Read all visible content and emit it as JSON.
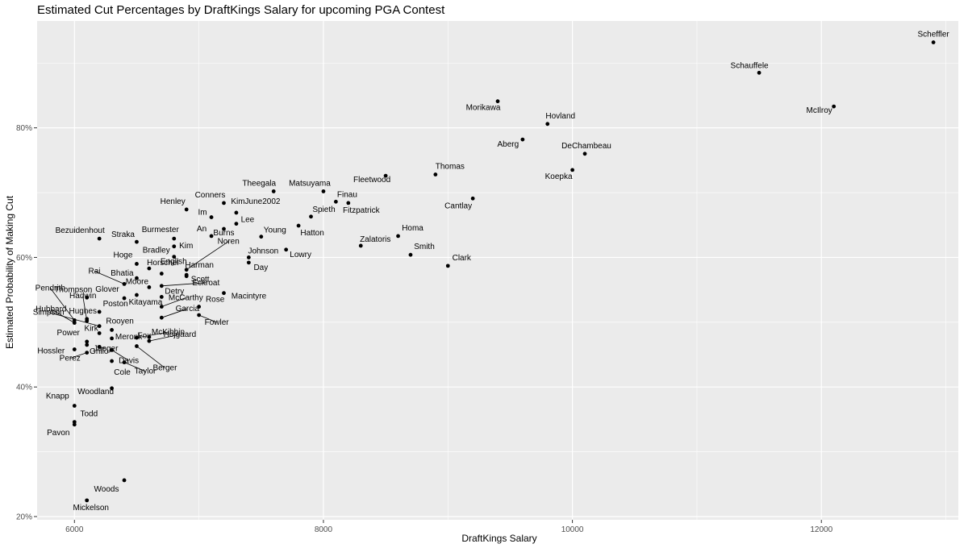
{
  "chart_data": {
    "type": "scatter",
    "title": "Estimated Cut Percentages by DraftKings Salary for upcoming PGA Contest",
    "xlabel": "DraftKings Salary",
    "ylabel": "Estimated Probability of Making Cut",
    "xlim": [
      5700,
      13100
    ],
    "ylim": [
      19.5,
      96.5
    ],
    "x_ticks": [
      6000,
      8000,
      10000,
      12000
    ],
    "x_tick_labels": [
      "6000",
      "8000",
      "10000",
      "12000"
    ],
    "y_ticks": [
      20,
      40,
      60,
      80
    ],
    "y_tick_labels": [
      "20%",
      "40%",
      "60%",
      "80%"
    ],
    "grid": true,
    "points": [
      {
        "label": "Scheffler",
        "x": 12900,
        "y": 93.2
      },
      {
        "label": "Schauffele",
        "x": 11500,
        "y": 88.5
      },
      {
        "label": "McIlroy",
        "x": 12100,
        "y": 83.3
      },
      {
        "label": "Morikawa",
        "x": 9400,
        "y": 84.1
      },
      {
        "label": "Hovland",
        "x": 9800,
        "y": 80.6
      },
      {
        "label": "Aberg",
        "x": 9600,
        "y": 78.2
      },
      {
        "label": "DeChambeau",
        "x": 10100,
        "y": 76.0
      },
      {
        "label": "Koepka",
        "x": 10000,
        "y": 73.5
      },
      {
        "label": "Thomas",
        "x": 8900,
        "y": 72.8
      },
      {
        "label": "Fleetwood",
        "x": 8500,
        "y": 72.6
      },
      {
        "label": "Cantlay",
        "x": 9200,
        "y": 69.1
      },
      {
        "label": "Theegala",
        "x": 7600,
        "y": 70.2
      },
      {
        "label": "Matsuyama",
        "x": 8000,
        "y": 70.2
      },
      {
        "label": "Finau",
        "x": 8100,
        "y": 68.6
      },
      {
        "label": "Fitzpatrick",
        "x": 8200,
        "y": 68.4
      },
      {
        "label": "Spieth",
        "x": 7900,
        "y": 66.3
      },
      {
        "label": "Conners",
        "x": 7200,
        "y": 68.4
      },
      {
        "label": "KimJune2002",
        "x": 7300,
        "y": 66.9
      },
      {
        "label": "Henley",
        "x": 6900,
        "y": 67.4
      },
      {
        "label": "Im",
        "x": 7100,
        "y": 66.2
      },
      {
        "label": "Lee",
        "x": 7300,
        "y": 65.2
      },
      {
        "label": "Hatton",
        "x": 7800,
        "y": 64.9
      },
      {
        "label": "An",
        "x": 7100,
        "y": 63.3
      },
      {
        "label": "Burns",
        "x": 7200,
        "y": 64.4
      },
      {
        "label": "Young",
        "x": 7500,
        "y": 63.2
      },
      {
        "label": "Homa",
        "x": 8600,
        "y": 63.3
      },
      {
        "label": "Zalatoris",
        "x": 8300,
        "y": 61.8
      },
      {
        "label": "Smith",
        "x": 8700,
        "y": 60.4
      },
      {
        "label": "Clark",
        "x": 9000,
        "y": 58.7
      },
      {
        "label": "Bezuidenhout",
        "x": 6200,
        "y": 62.9
      },
      {
        "label": "Straka",
        "x": 6500,
        "y": 62.4
      },
      {
        "label": "Burmester",
        "x": 6800,
        "y": 62.9
      },
      {
        "label": "Kim",
        "x": 6800,
        "y": 61.7
      },
      {
        "label": "Bradley",
        "x": 6800,
        "y": 60.1
      },
      {
        "label": "Johnson",
        "x": 7400,
        "y": 60.0
      },
      {
        "label": "Day",
        "x": 7400,
        "y": 59.2
      },
      {
        "label": "Lowry",
        "x": 7700,
        "y": 61.2
      },
      {
        "label": "Noren",
        "x": 6900,
        "y": 58.1
      },
      {
        "label": "Hoge",
        "x": 6500,
        "y": 59.0
      },
      {
        "label": "Horschel",
        "x": 6600,
        "y": 58.3
      },
      {
        "label": "Harman",
        "x": 6900,
        "y": 57.3
      },
      {
        "label": "Bhatia",
        "x": 6500,
        "y": 56.8
      },
      {
        "label": "Scott",
        "x": 6900,
        "y": 57.1
      },
      {
        "label": "Rai",
        "x": 6400,
        "y": 55.9
      },
      {
        "label": "English",
        "x": 6700,
        "y": 57.5
      },
      {
        "label": "Moore",
        "x": 6600,
        "y": 55.4
      },
      {
        "label": "Eckroat",
        "x": 6700,
        "y": 55.6
      },
      {
        "label": "Thompson",
        "x": 6100,
        "y": 53.8
      },
      {
        "label": "Glover",
        "x": 6400,
        "y": 53.7
      },
      {
        "label": "Detry",
        "x": 6700,
        "y": 53.9
      },
      {
        "label": "Kitayama",
        "x": 6500,
        "y": 54.2
      },
      {
        "label": "Macintyre",
        "x": 7200,
        "y": 54.5
      },
      {
        "label": "Pendrith",
        "x": 6000,
        "y": 50.3
      },
      {
        "label": "Hadwin",
        "x": 6100,
        "y": 50.2
      },
      {
        "label": "Poston",
        "x": 6200,
        "y": 51.6
      },
      {
        "label": "McCarthy",
        "x": 6700,
        "y": 52.4
      },
      {
        "label": "Rose",
        "x": 7000,
        "y": 52.4
      },
      {
        "label": "Hubbard",
        "x": 6000,
        "y": 49.9
      },
      {
        "label": "Hughes",
        "x": 6100,
        "y": 50.5
      },
      {
        "label": "Rooyen",
        "x": 6300,
        "y": 48.8
      },
      {
        "label": "Garcia",
        "x": 6700,
        "y": 50.7
      },
      {
        "label": "Fowler",
        "x": 7000,
        "y": 51.1
      },
      {
        "label": "Simpson",
        "x": 6200,
        "y": 49.4
      },
      {
        "label": "Kirk",
        "x": 6200,
        "y": 48.3
      },
      {
        "label": "McKibbin",
        "x": 6500,
        "y": 47.6
      },
      {
        "label": "Power",
        "x": 6100,
        "y": 47.0
      },
      {
        "label": "Meronk",
        "x": 6300,
        "y": 47.5
      },
      {
        "label": "Fox",
        "x": 6600,
        "y": 47.7
      },
      {
        "label": "Hojgaard",
        "x": 6600,
        "y": 47.1
      },
      {
        "label": "Hossler",
        "x": 6000,
        "y": 45.8
      },
      {
        "label": "Jaeger",
        "x": 6200,
        "y": 46.2
      },
      {
        "label": "Davis",
        "x": 6300,
        "y": 45.7
      },
      {
        "label": "Berger",
        "x": 6500,
        "y": 46.3
      },
      {
        "label": "Perez",
        "x": 6100,
        "y": 45.3
      },
      {
        "label": "Grillo",
        "x": 6100,
        "y": 46.5
      },
      {
        "label": "Cole",
        "x": 6300,
        "y": 44.0
      },
      {
        "label": "Taylor",
        "x": 6400,
        "y": 43.8
      },
      {
        "label": "Woodland",
        "x": 6300,
        "y": 39.8
      },
      {
        "label": "Knapp",
        "x": 6000,
        "y": 37.1
      },
      {
        "label": "Todd",
        "x": 6000,
        "y": 34.6
      },
      {
        "label": "Pavon",
        "x": 6000,
        "y": 34.2
      },
      {
        "label": "Woods",
        "x": 6400,
        "y": 25.6
      },
      {
        "label": "Mickelson",
        "x": 6100,
        "y": 22.5
      }
    ]
  }
}
